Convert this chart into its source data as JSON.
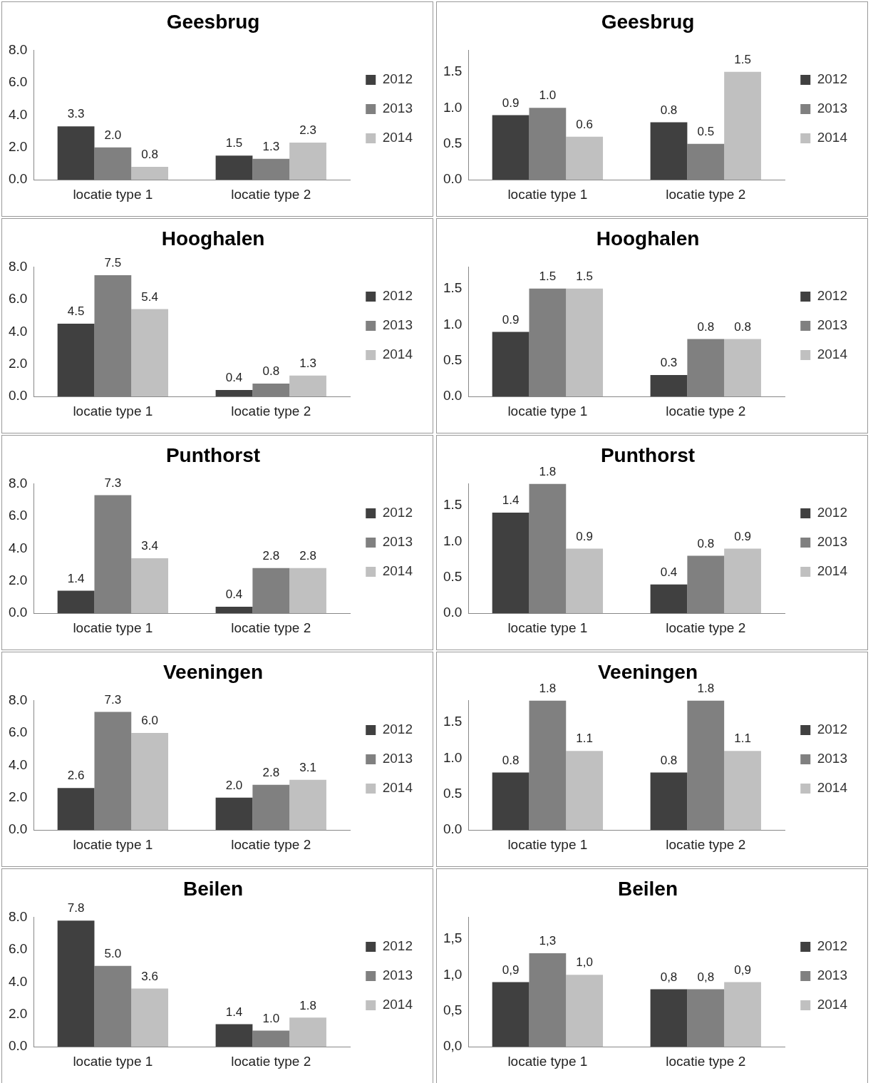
{
  "chart_data": [
    {
      "type": "bar",
      "title": "Geesbrug",
      "categories": [
        "locatie type 1",
        "locatie type 2"
      ],
      "ylim": [
        0,
        8
      ],
      "yticks": [
        {
          "value": 0,
          "label": "0.0"
        },
        {
          "value": 2,
          "label": "2.0"
        },
        {
          "value": 4,
          "label": "4.0"
        },
        {
          "value": 6,
          "label": "6.0"
        },
        {
          "value": 8,
          "label": "8.0"
        }
      ],
      "legend": "right",
      "series": [
        {
          "name": "2012",
          "color": "#404040",
          "values": [
            3.3,
            1.5
          ],
          "value_labels": [
            "3.3",
            "1.5"
          ]
        },
        {
          "name": "2013",
          "color": "#808080",
          "values": [
            2.0,
            1.3
          ],
          "value_labels": [
            "2.0",
            "1.3"
          ]
        },
        {
          "name": "2014",
          "color": "#c0c0c0",
          "values": [
            0.8,
            2.3
          ],
          "value_labels": [
            "0.8",
            "2.3"
          ]
        }
      ]
    },
    {
      "type": "bar",
      "title": "Geesbrug",
      "categories": [
        "locatie type 1",
        "locatie type 2"
      ],
      "ylim": [
        0,
        1.8
      ],
      "yticks": [
        {
          "value": 0,
          "label": "0.0"
        },
        {
          "value": 0.5,
          "label": "0.5"
        },
        {
          "value": 1,
          "label": "1.0"
        },
        {
          "value": 1.5,
          "label": "1.5"
        }
      ],
      "legend": "right",
      "series": [
        {
          "name": "2012",
          "color": "#404040",
          "values": [
            0.9,
            0.8
          ],
          "value_labels": [
            "0.9",
            "0.8"
          ]
        },
        {
          "name": "2013",
          "color": "#808080",
          "values": [
            1.0,
            0.5
          ],
          "value_labels": [
            "1.0",
            "0.5"
          ]
        },
        {
          "name": "2014",
          "color": "#c0c0c0",
          "values": [
            0.6,
            1.5
          ],
          "value_labels": [
            "0.6",
            "1.5"
          ]
        }
      ]
    },
    {
      "type": "bar",
      "title": "Hooghalen",
      "categories": [
        "locatie type 1",
        "locatie type 2"
      ],
      "ylim": [
        0,
        8
      ],
      "yticks": [
        {
          "value": 0,
          "label": "0.0"
        },
        {
          "value": 2,
          "label": "2.0"
        },
        {
          "value": 4,
          "label": "4.0"
        },
        {
          "value": 6,
          "label": "6.0"
        },
        {
          "value": 8,
          "label": "8.0"
        }
      ],
      "legend": "right",
      "series": [
        {
          "name": "2012",
          "color": "#404040",
          "values": [
            4.5,
            0.4
          ],
          "value_labels": [
            "4.5",
            "0.4"
          ]
        },
        {
          "name": "2013",
          "color": "#808080",
          "values": [
            7.5,
            0.8
          ],
          "value_labels": [
            "7.5",
            "0.8"
          ]
        },
        {
          "name": "2014",
          "color": "#c0c0c0",
          "values": [
            5.4,
            1.3
          ],
          "value_labels": [
            "5.4",
            "1.3"
          ]
        }
      ]
    },
    {
      "type": "bar",
      "title": "Hooghalen",
      "categories": [
        "locatie type 1",
        "locatie type 2"
      ],
      "ylim": [
        0,
        1.8
      ],
      "yticks": [
        {
          "value": 0,
          "label": "0.0"
        },
        {
          "value": 0.5,
          "label": "0.5"
        },
        {
          "value": 1,
          "label": "1.0"
        },
        {
          "value": 1.5,
          "label": "1.5"
        }
      ],
      "legend": "right",
      "series": [
        {
          "name": "2012",
          "color": "#404040",
          "values": [
            0.9,
            0.3
          ],
          "value_labels": [
            "0.9",
            "0.3"
          ]
        },
        {
          "name": "2013",
          "color": "#808080",
          "values": [
            1.5,
            0.8
          ],
          "value_labels": [
            "1.5",
            "0.8"
          ]
        },
        {
          "name": "2014",
          "color": "#c0c0c0",
          "values": [
            1.5,
            0.8
          ],
          "value_labels": [
            "1.5",
            "0.8"
          ]
        }
      ]
    },
    {
      "type": "bar",
      "title": "Punthorst",
      "categories": [
        "locatie type 1",
        "locatie type 2"
      ],
      "ylim": [
        0,
        8
      ],
      "yticks": [
        {
          "value": 0,
          "label": "0.0"
        },
        {
          "value": 2,
          "label": "2.0"
        },
        {
          "value": 4,
          "label": "4.0"
        },
        {
          "value": 6,
          "label": "6.0"
        },
        {
          "value": 8,
          "label": "8.0"
        }
      ],
      "legend": "right",
      "series": [
        {
          "name": "2012",
          "color": "#404040",
          "values": [
            1.4,
            0.4
          ],
          "value_labels": [
            "1.4",
            "0.4"
          ]
        },
        {
          "name": "2013",
          "color": "#808080",
          "values": [
            7.3,
            2.8
          ],
          "value_labels": [
            "7.3",
            "2.8"
          ]
        },
        {
          "name": "2014",
          "color": "#c0c0c0",
          "values": [
            3.4,
            2.8
          ],
          "value_labels": [
            "3.4",
            "2.8"
          ]
        }
      ]
    },
    {
      "type": "bar",
      "title": "Punthorst",
      "categories": [
        "locatie type 1",
        "locatie type 2"
      ],
      "ylim": [
        0,
        1.8
      ],
      "yticks": [
        {
          "value": 0,
          "label": "0.0"
        },
        {
          "value": 0.5,
          "label": "0.5"
        },
        {
          "value": 1,
          "label": "1.0"
        },
        {
          "value": 1.5,
          "label": "1.5"
        }
      ],
      "legend": "right",
      "series": [
        {
          "name": "2012",
          "color": "#404040",
          "values": [
            1.4,
            0.4
          ],
          "value_labels": [
            "1.4",
            "0.4"
          ]
        },
        {
          "name": "2013",
          "color": "#808080",
          "values": [
            1.8,
            0.8
          ],
          "value_labels": [
            "1.8",
            "0.8"
          ]
        },
        {
          "name": "2014",
          "color": "#c0c0c0",
          "values": [
            0.9,
            0.9
          ],
          "value_labels": [
            "0.9",
            "0.9"
          ]
        }
      ]
    },
    {
      "type": "bar",
      "title": "Veeningen",
      "categories": [
        "locatie type 1",
        "locatie type 2"
      ],
      "ylim": [
        0,
        8
      ],
      "yticks": [
        {
          "value": 0,
          "label": "0.0"
        },
        {
          "value": 2,
          "label": "2.0"
        },
        {
          "value": 4,
          "label": "4.0"
        },
        {
          "value": 6,
          "label": "6.0"
        },
        {
          "value": 8,
          "label": "8.0"
        }
      ],
      "legend": "right",
      "series": [
        {
          "name": "2012",
          "color": "#404040",
          "values": [
            2.6,
            2.0
          ],
          "value_labels": [
            "2.6",
            "2.0"
          ]
        },
        {
          "name": "2013",
          "color": "#808080",
          "values": [
            7.3,
            2.8
          ],
          "value_labels": [
            "7.3",
            "2.8"
          ]
        },
        {
          "name": "2014",
          "color": "#c0c0c0",
          "values": [
            6.0,
            3.1
          ],
          "value_labels": [
            "6.0",
            "3.1"
          ]
        }
      ]
    },
    {
      "type": "bar",
      "title": "Veeningen",
      "categories": [
        "locatie type 1",
        "locatie type 2"
      ],
      "ylim": [
        0,
        1.8
      ],
      "yticks": [
        {
          "value": 0,
          "label": "0.0"
        },
        {
          "value": 0.5,
          "label": "0.5"
        },
        {
          "value": 1,
          "label": "1.0"
        },
        {
          "value": 1.5,
          "label": "1.5"
        }
      ],
      "legend": "right",
      "series": [
        {
          "name": "2012",
          "color": "#404040",
          "values": [
            0.8,
            0.8
          ],
          "value_labels": [
            "0.8",
            "0.8"
          ]
        },
        {
          "name": "2013",
          "color": "#808080",
          "values": [
            1.8,
            1.8
          ],
          "value_labels": [
            "1.8",
            "1.8"
          ]
        },
        {
          "name": "2014",
          "color": "#c0c0c0",
          "values": [
            1.1,
            1.1
          ],
          "value_labels": [
            "1.1",
            "1.1"
          ]
        }
      ]
    },
    {
      "type": "bar",
      "title": "Beilen",
      "categories": [
        "locatie type 1",
        "locatie type 2"
      ],
      "ylim": [
        0,
        8
      ],
      "yticks": [
        {
          "value": 0,
          "label": "0.0"
        },
        {
          "value": 2,
          "label": "2.0"
        },
        {
          "value": 4,
          "label": "4.0"
        },
        {
          "value": 6,
          "label": "6.0"
        },
        {
          "value": 8,
          "label": "8.0"
        }
      ],
      "legend": "right",
      "series": [
        {
          "name": "2012",
          "color": "#404040",
          "values": [
            7.8,
            1.4
          ],
          "value_labels": [
            "7.8",
            "1.4"
          ]
        },
        {
          "name": "2013",
          "color": "#808080",
          "values": [
            5.0,
            1.0
          ],
          "value_labels": [
            "5.0",
            "1.0"
          ]
        },
        {
          "name": "2014",
          "color": "#c0c0c0",
          "values": [
            3.6,
            1.8
          ],
          "value_labels": [
            "3.6",
            "1.8"
          ]
        }
      ]
    },
    {
      "type": "bar",
      "title": "Beilen",
      "categories": [
        "locatie type 1",
        "locatie type 2"
      ],
      "ylim": [
        0,
        1.8
      ],
      "yticks": [
        {
          "value": 0,
          "label": "0,0"
        },
        {
          "value": 0.5,
          "label": "0,5"
        },
        {
          "value": 1,
          "label": "1,0"
        },
        {
          "value": 1.5,
          "label": "1,5"
        }
      ],
      "legend": "right",
      "series": [
        {
          "name": "2012",
          "color": "#404040",
          "values": [
            0.9,
            0.8
          ],
          "value_labels": [
            "0,9",
            "0,8"
          ]
        },
        {
          "name": "2013",
          "color": "#808080",
          "values": [
            1.3,
            0.8
          ],
          "value_labels": [
            "1,3",
            "0,8"
          ]
        },
        {
          "name": "2014",
          "color": "#c0c0c0",
          "values": [
            1.0,
            0.9
          ],
          "value_labels": [
            "1,0",
            "0,9"
          ]
        }
      ]
    }
  ]
}
